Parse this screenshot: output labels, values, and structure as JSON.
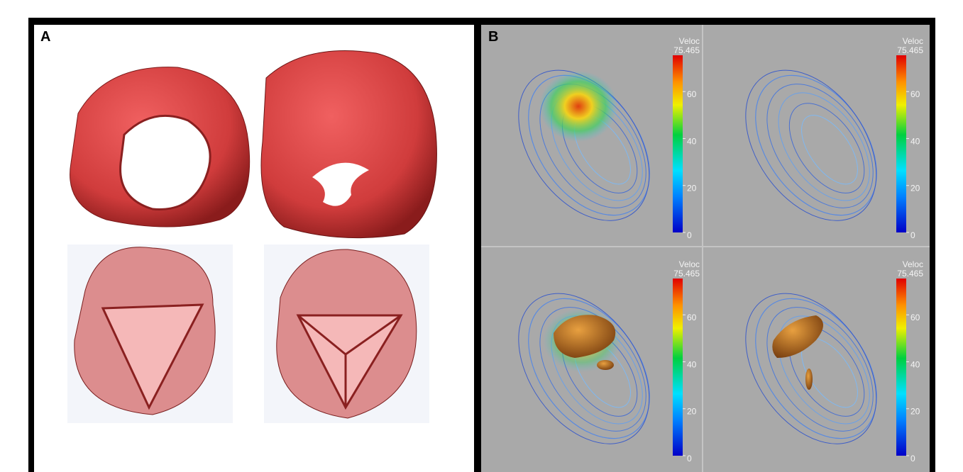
{
  "panels": {
    "A": {
      "label": "A"
    },
    "B": {
      "label": "B",
      "views": [
        {
          "colorbar": {
            "title": "Veloc",
            "max": 75.465,
            "ticks": [
              60,
              40,
              20,
              0
            ]
          }
        },
        {
          "colorbar": {
            "title": "Veloc",
            "max": 75.465,
            "ticks": [
              60,
              40,
              20,
              0
            ]
          }
        },
        {
          "colorbar": {
            "title": "Veloc",
            "max": 75.465,
            "ticks": [
              60,
              40,
              20,
              0
            ]
          }
        },
        {
          "colorbar": {
            "title": "Veloc",
            "max": 75.465,
            "ticks": [
              60,
              40,
              20,
              0
            ]
          }
        }
      ]
    }
  }
}
